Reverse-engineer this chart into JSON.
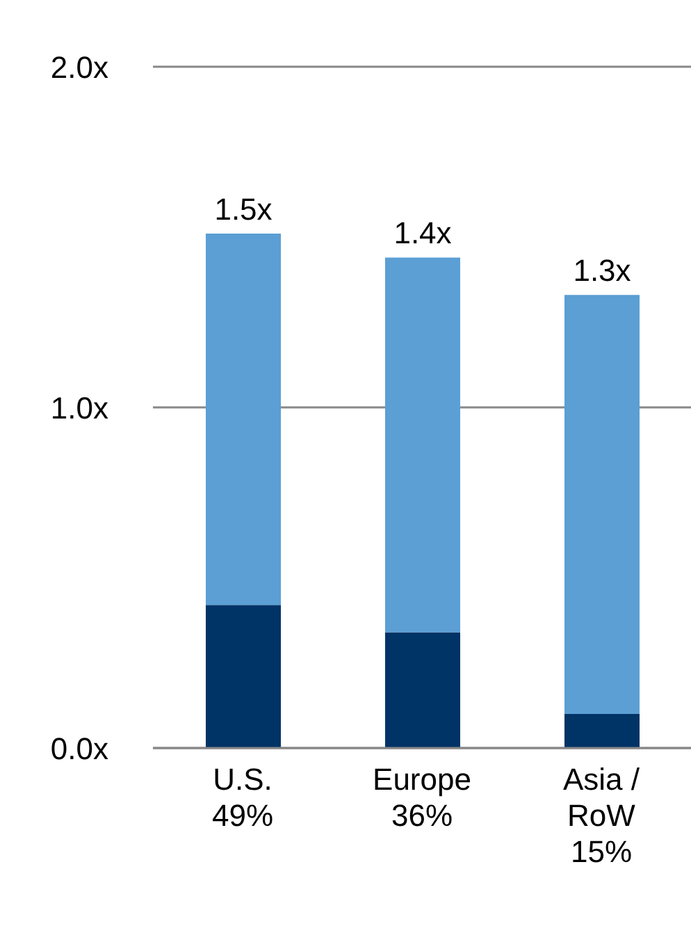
{
  "chart_data": {
    "type": "bar",
    "stacked": true,
    "categories": [
      "U.S.\n49%",
      "Europe\n36%",
      "Asia /\nRoW\n15%"
    ],
    "series": [
      {
        "color": "#003366",
        "values": [
          0.42,
          0.34,
          0.1
        ]
      },
      {
        "color": "#5b9fd4",
        "values": [
          1.09,
          1.1,
          1.23
        ]
      }
    ],
    "totals": [
      "1.5x",
      "1.4x",
      "1.3x"
    ],
    "ylim": [
      0,
      2
    ],
    "yticks": [
      {
        "value": 0,
        "label": "0.0x"
      },
      {
        "value": 1,
        "label": "1.0x"
      },
      {
        "value": 2,
        "label": "2.0x"
      }
    ],
    "grid": "y"
  }
}
